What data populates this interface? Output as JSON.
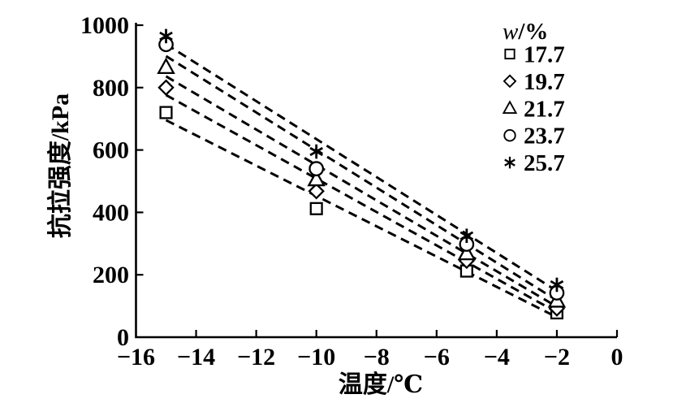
{
  "figure": {
    "background": "#ffffff",
    "ink": "#000000"
  },
  "chart_data": {
    "type": "scatter",
    "title": "",
    "xlabel": "温度/℃",
    "ylabel": "抗拉强度/kPa",
    "xlim": [
      -16,
      0
    ],
    "ylim": [
      0,
      1000
    ],
    "x_ticks": [
      -16,
      -14,
      -12,
      -10,
      -8,
      -6,
      -4,
      -2,
      0
    ],
    "y_ticks": [
      0,
      200,
      400,
      600,
      800,
      1000
    ],
    "grid": false,
    "legend_title": "w/%",
    "legend_position": "upper-right-inside",
    "x": [
      -15,
      -10,
      -5,
      -2
    ],
    "series": [
      {
        "name": "17.7",
        "marker": "square",
        "values": [
          720,
          412,
          212,
          78
        ]
      },
      {
        "name": "19.7",
        "marker": "diamond",
        "values": [
          800,
          468,
          245,
          92
        ]
      },
      {
        "name": "21.7",
        "marker": "triangle",
        "values": [
          865,
          505,
          268,
          116
        ]
      },
      {
        "name": "23.7",
        "marker": "circle",
        "values": [
          938,
          540,
          298,
          142
        ]
      },
      {
        "name": "25.7",
        "marker": "asterisk",
        "values": [
          965,
          595,
          325,
          168
        ]
      }
    ],
    "trendlines": {
      "style": "dashed",
      "fit": "linear",
      "x_start": -15,
      "x_end": -2
    }
  }
}
